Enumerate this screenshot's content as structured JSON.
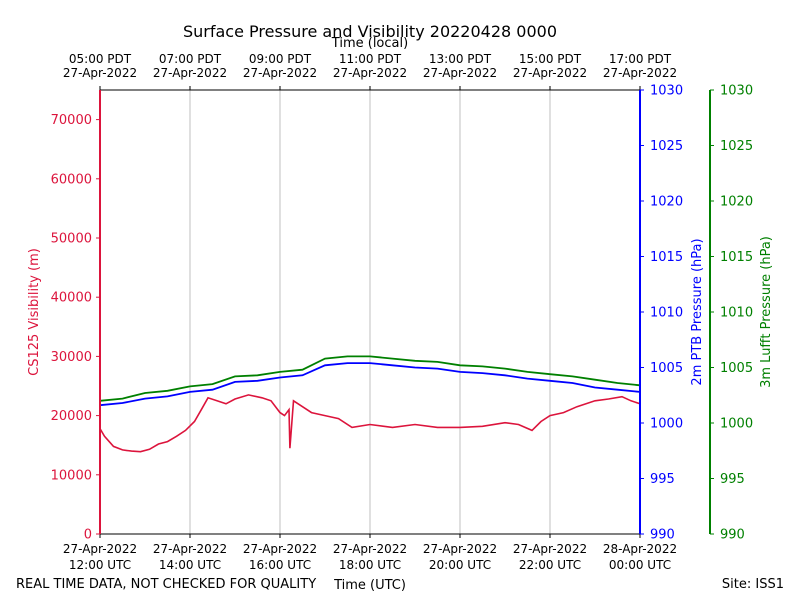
{
  "chart_data": {
    "type": "line",
    "title": "Surface Pressure and Visibility 20220428 0000",
    "top_axis_label": "Time (local)",
    "xlabel": "Time (UTC)",
    "footer_left": "REAL TIME DATA, NOT CHECKED FOR QUALITY",
    "footer_right": "Site: ISS1",
    "x_range_hours": [
      12,
      24
    ],
    "x_ticks": [
      {
        "hour": 12,
        "utc": [
          "27-Apr-2022",
          "12:00 UTC"
        ]
      },
      {
        "hour": 14,
        "utc": [
          "27-Apr-2022",
          "14:00 UTC"
        ]
      },
      {
        "hour": 16,
        "utc": [
          "27-Apr-2022",
          "16:00 UTC"
        ]
      },
      {
        "hour": 18,
        "utc": [
          "27-Apr-2022",
          "18:00 UTC"
        ]
      },
      {
        "hour": 20,
        "utc": [
          "27-Apr-2022",
          "20:00 UTC"
        ]
      },
      {
        "hour": 22,
        "utc": [
          "27-Apr-2022",
          "22:00 UTC"
        ]
      },
      {
        "hour": 24,
        "utc": [
          "28-Apr-2022",
          "00:00 UTC"
        ]
      }
    ],
    "top_ticks": [
      {
        "hour": 12,
        "local": [
          "05:00 PDT",
          "27-Apr-2022"
        ]
      },
      {
        "hour": 14,
        "local": [
          "07:00 PDT",
          "27-Apr-2022"
        ]
      },
      {
        "hour": 16,
        "local": [
          "09:00 PDT",
          "27-Apr-2022"
        ]
      },
      {
        "hour": 18,
        "local": [
          "11:00 PDT",
          "27-Apr-2022"
        ]
      },
      {
        "hour": 20,
        "local": [
          "13:00 PDT",
          "27-Apr-2022"
        ]
      },
      {
        "hour": 22,
        "local": [
          "15:00 PDT",
          "27-Apr-2022"
        ]
      },
      {
        "hour": 24,
        "local": [
          "17:00 PDT",
          "27-Apr-2022"
        ]
      }
    ],
    "axes": {
      "left": {
        "label": "CS125 Visibility (m)",
        "color": "#dc143c",
        "ylim": [
          0,
          75000
        ],
        "ticks": [
          0,
          10000,
          20000,
          30000,
          40000,
          50000,
          60000,
          70000
        ]
      },
      "right1": {
        "label": "2m PTB Pressure (hPa)",
        "color": "#0000ff",
        "ylim": [
          990,
          1030
        ],
        "ticks": [
          990,
          995,
          1000,
          1005,
          1010,
          1015,
          1020,
          1025,
          1030
        ]
      },
      "right2": {
        "label": "3m Lufft Pressure (hPa)",
        "color": "#008000",
        "ylim": [
          990,
          1030
        ],
        "ticks": [
          990,
          995,
          1000,
          1005,
          1010,
          1015,
          1020,
          1025,
          1030
        ]
      }
    },
    "series": [
      {
        "name": "CS125 Visibility",
        "axis": "left",
        "color": "#dc143c",
        "x": [
          12.0,
          12.1,
          12.3,
          12.5,
          12.7,
          12.9,
          13.1,
          13.3,
          13.5,
          13.7,
          13.9,
          14.1,
          14.25,
          14.4,
          14.6,
          14.8,
          15.0,
          15.3,
          15.6,
          15.8,
          16.0,
          16.1,
          16.2,
          16.22,
          16.3,
          16.5,
          16.7,
          17.0,
          17.3,
          17.6,
          18.0,
          18.5,
          19.0,
          19.5,
          20.0,
          20.5,
          21.0,
          21.3,
          21.6,
          21.8,
          22.0,
          22.3,
          22.6,
          23.0,
          23.3,
          23.6,
          23.8,
          24.0
        ],
        "y": [
          17800,
          16500,
          14800,
          14200,
          14000,
          13900,
          14300,
          15200,
          15600,
          16500,
          17500,
          19000,
          21000,
          23000,
          22500,
          22000,
          22800,
          23500,
          23000,
          22500,
          20500,
          20000,
          21000,
          14500,
          22500,
          21500,
          20500,
          20000,
          19500,
          18000,
          18500,
          18000,
          18500,
          18000,
          18000,
          18200,
          18800,
          18500,
          17500,
          19000,
          20000,
          20500,
          21500,
          22500,
          22800,
          23200,
          22500,
          22000
        ]
      },
      {
        "name": "2m PTB Pressure",
        "axis": "right1",
        "color": "#0000ff",
        "x": [
          12.0,
          12.5,
          13.0,
          13.5,
          14.0,
          14.5,
          15.0,
          15.5,
          16.0,
          16.5,
          17.0,
          17.5,
          18.0,
          18.5,
          19.0,
          19.5,
          20.0,
          20.5,
          21.0,
          21.5,
          22.0,
          22.5,
          23.0,
          23.5,
          24.0
        ],
        "y": [
          1001.6,
          1001.8,
          1002.2,
          1002.4,
          1002.8,
          1003.0,
          1003.7,
          1003.8,
          1004.1,
          1004.3,
          1005.2,
          1005.4,
          1005.4,
          1005.2,
          1005.0,
          1004.9,
          1004.6,
          1004.5,
          1004.3,
          1004.0,
          1003.8,
          1003.6,
          1003.2,
          1003.0,
          1002.8
        ]
      },
      {
        "name": "3m Lufft Pressure",
        "axis": "right2",
        "color": "#008000",
        "x": [
          12.0,
          12.5,
          13.0,
          13.5,
          14.0,
          14.5,
          15.0,
          15.5,
          16.0,
          16.5,
          17.0,
          17.5,
          18.0,
          18.5,
          19.0,
          19.5,
          20.0,
          20.5,
          21.0,
          21.5,
          22.0,
          22.5,
          23.0,
          23.5,
          24.0
        ],
        "y": [
          1002.0,
          1002.2,
          1002.7,
          1002.9,
          1003.3,
          1003.5,
          1004.2,
          1004.3,
          1004.6,
          1004.8,
          1005.8,
          1006.0,
          1006.0,
          1005.8,
          1005.6,
          1005.5,
          1005.2,
          1005.1,
          1004.9,
          1004.6,
          1004.4,
          1004.2,
          1003.9,
          1003.6,
          1003.4
        ]
      }
    ]
  }
}
